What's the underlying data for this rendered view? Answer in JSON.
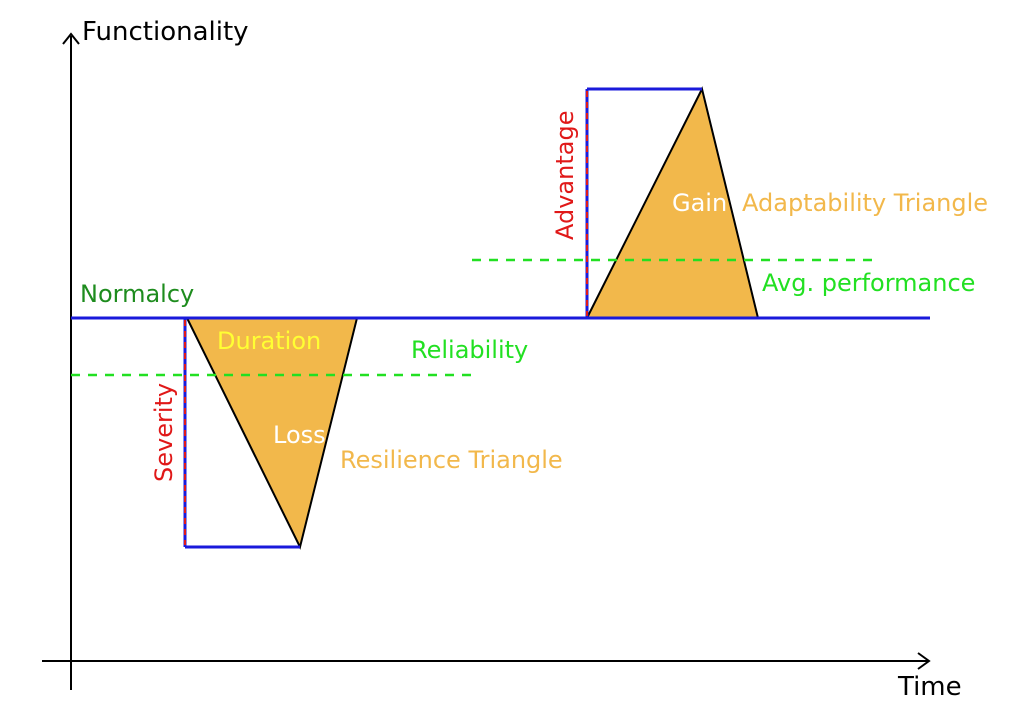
{
  "axes": {
    "y_label": "Functionality",
    "x_label": "Time"
  },
  "labels": {
    "normalcy": "Normalcy",
    "duration": "Duration",
    "severity": "Severity",
    "loss": "Loss",
    "resilience_triangle": "Resilience Triangle",
    "reliability": "Reliability",
    "advantage": "Advantage",
    "gain": "Gain",
    "adaptability_triangle": "Adaptability Triangle",
    "avg_performance": "Avg. performance"
  },
  "colors": {
    "axis": "#000000",
    "baseline": "#1a1adb",
    "triangle_fill": "#f2b84b",
    "severity_red": "#e01818",
    "dashed_green": "#22e022",
    "normalcy_green": "#1e8c1e",
    "duration_yellow": "#ffff33",
    "triangle_label": "#f2b84b",
    "inner_white": "#ffffff"
  }
}
